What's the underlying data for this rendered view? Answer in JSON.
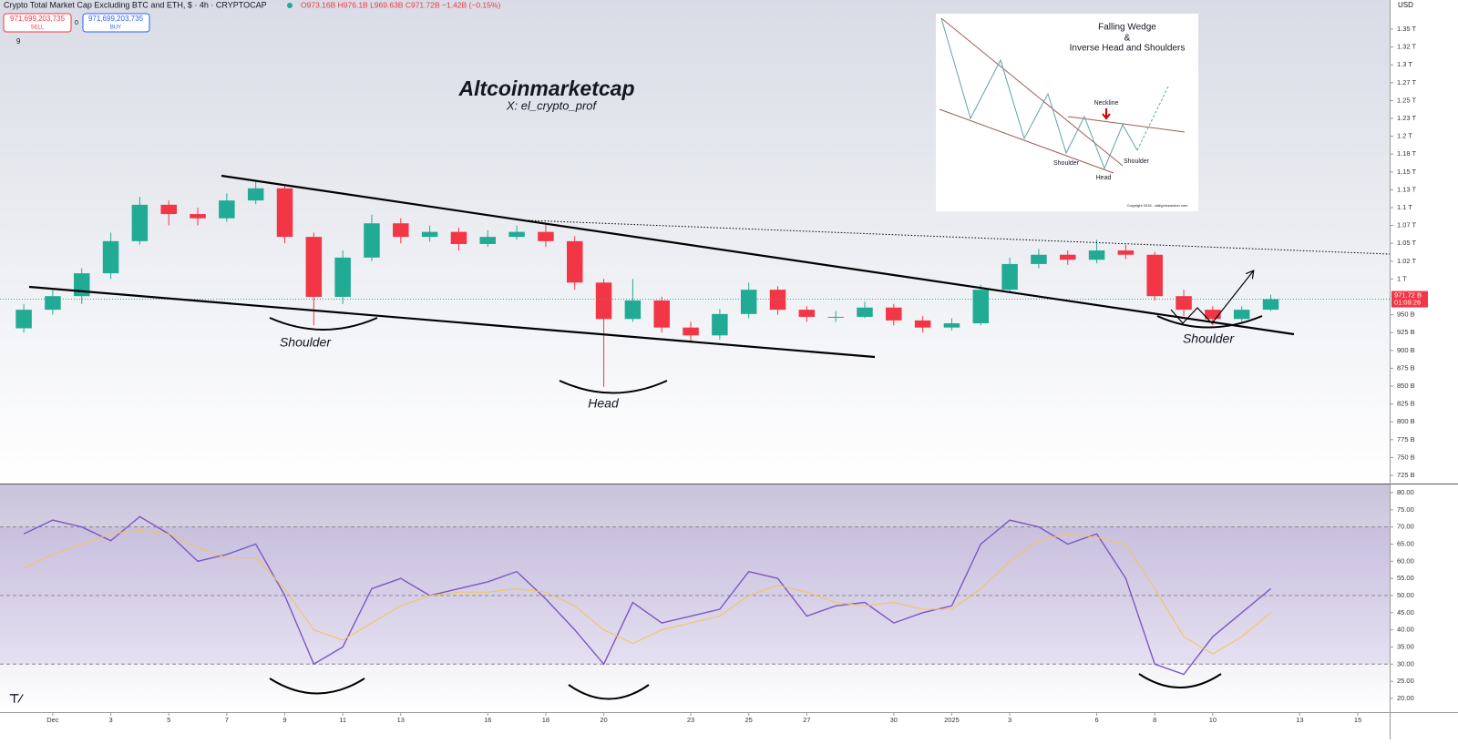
{
  "header": {
    "title": "Crypto Total Market Cap Excluding BTC and ETH, $ · 4h · CRYPTOCAP",
    "ohlc": "O973.16B H976.1B L969.63B C971.72B −1.42B (−0.15%)",
    "sell_price": "971,699,203,735",
    "sell_label": "SELL",
    "spread": "0",
    "buy_price": "971,699,203,735",
    "buy_label": "BUY",
    "indicator_count": "9",
    "currency": "USD"
  },
  "inset": {
    "title_line1": "Falling Wedge",
    "title_line2": "&",
    "title_line3": "Inverse Head and Shoulders",
    "neckline": "Neckline",
    "left_shoulder": "Shoulder",
    "head": "Head",
    "right_shoulder": "Shoulder",
    "copyright": "Copyright 2018 - dailypriceaction.com"
  },
  "chart_data": [
    {
      "type": "candlestick",
      "title": "Altcoinmarketcap",
      "subtitle": "X: el_crypto_prof",
      "annotations": [
        "Shoulder",
        "Head",
        "Shoulder"
      ],
      "x": [
        0,
        1,
        2,
        3,
        4,
        5,
        6,
        7,
        8,
        9,
        10,
        11,
        12,
        13,
        14,
        15,
        16,
        17,
        18,
        19,
        20,
        21,
        22,
        23,
        24,
        25,
        26,
        27,
        28,
        29,
        30,
        31,
        32,
        33,
        34,
        35,
        36,
        37,
        38,
        39,
        40,
        41,
        42,
        43
      ],
      "open": [
        931,
        957,
        976,
        1008,
        1053,
        1104,
        1091,
        1085,
        1110,
        1127,
        1059,
        975,
        1030,
        1078,
        1059,
        1066,
        1049,
        1059,
        1066,
        1053,
        995,
        944,
        970,
        932,
        921,
        951,
        985,
        957,
        947,
        947,
        960,
        942,
        932,
        938,
        985,
        1021,
        1034,
        1027,
        1040,
        1034,
        976,
        957,
        944,
        957
      ],
      "high": [
        965,
        985,
        1015,
        1065,
        1115,
        1110,
        1100,
        1120,
        1138,
        1130,
        1065,
        1040,
        1090,
        1085,
        1075,
        1072,
        1068,
        1075,
        1078,
        1060,
        1000,
        1000,
        975,
        940,
        958,
        995,
        990,
        962,
        955,
        968,
        965,
        948,
        945,
        992,
        1030,
        1042,
        1040,
        1055,
        1048,
        1038,
        985,
        962,
        962,
        978
      ],
      "low": [
        925,
        950,
        965,
        1000,
        1048,
        1075,
        1075,
        1080,
        1105,
        1050,
        935,
        965,
        1025,
        1050,
        1052,
        1040,
        1045,
        1055,
        1045,
        985,
        849,
        940,
        925,
        912,
        915,
        945,
        950,
        940,
        940,
        945,
        935,
        925,
        928,
        935,
        980,
        1015,
        1020,
        1022,
        1028,
        970,
        948,
        935,
        940,
        955
      ],
      "close": [
        957,
        976,
        1008,
        1053,
        1104,
        1091,
        1085,
        1110,
        1127,
        1059,
        975,
        1030,
        1078,
        1059,
        1066,
        1049,
        1059,
        1066,
        1053,
        995,
        944,
        970,
        932,
        921,
        951,
        985,
        957,
        947,
        947,
        960,
        942,
        932,
        938,
        985,
        1021,
        1034,
        1027,
        1040,
        1034,
        976,
        957,
        944,
        957,
        971.72
      ],
      "up_color": "#22ab94",
      "down_color": "#f23645",
      "last_price": 971.72,
      "last_price_label": "971.72 B",
      "countdown": "01:09:26",
      "xlim": [
        -0.82,
        47.1
      ],
      "ylim": [
        713.5,
        1390.8
      ],
      "yticks": [
        {
          "value": 725,
          "label": "725 B"
        },
        {
          "value": 750,
          "label": "750 B"
        },
        {
          "value": 775,
          "label": "775 B"
        },
        {
          "value": 800,
          "label": "800 B"
        },
        {
          "value": 825,
          "label": "825 B"
        },
        {
          "value": 850,
          "label": "850 B"
        },
        {
          "value": 875,
          "label": "875 B"
        },
        {
          "value": 900,
          "label": "900 B"
        },
        {
          "value": 925,
          "label": "925 B"
        },
        {
          "value": 950,
          "label": "950 B"
        },
        {
          "value": 1000,
          "label": "1 T"
        },
        {
          "value": 1025,
          "label": "1.02 T"
        },
        {
          "value": 1050,
          "label": "1.05 T"
        },
        {
          "value": 1075,
          "label": "1.07 T"
        },
        {
          "value": 1100,
          "label": "1.1 T"
        },
        {
          "value": 1125,
          "label": "1.13 T"
        },
        {
          "value": 1150,
          "label": "1.15 T"
        },
        {
          "value": 1175,
          "label": "1.18 T"
        },
        {
          "value": 1200,
          "label": "1.2 T"
        },
        {
          "value": 1225,
          "label": "1.23 T"
        },
        {
          "value": 1250,
          "label": "1.25 T"
        },
        {
          "value": 1275,
          "label": "1.27 T"
        },
        {
          "value": 1300,
          "label": "1.3 T"
        },
        {
          "value": 1325,
          "label": "1.32 T"
        },
        {
          "value": 1350,
          "label": "1.35 T"
        }
      ]
    },
    {
      "type": "line",
      "x": [
        0,
        1,
        2,
        3,
        4,
        5,
        6,
        7,
        8,
        9,
        10,
        11,
        12,
        13,
        14,
        15,
        16,
        17,
        18,
        19,
        20,
        21,
        22,
        23,
        24,
        25,
        26,
        27,
        28,
        29,
        30,
        31,
        32,
        33,
        34,
        35,
        36,
        37,
        38,
        39,
        40,
        41,
        42,
        43
      ],
      "series": [
        {
          "color": "#7e57c2",
          "values": [
            68,
            72,
            70,
            66,
            73,
            68,
            60,
            62,
            65,
            50,
            30,
            35,
            52,
            55,
            50,
            52,
            54,
            57,
            49,
            40,
            30,
            48,
            42,
            44,
            46,
            57,
            55,
            44,
            47,
            48,
            42,
            45,
            47,
            65,
            72,
            70,
            65,
            68,
            55,
            30,
            27,
            38,
            45,
            52
          ]
        },
        {
          "color": "#f5c451",
          "values": [
            58,
            62,
            65,
            68,
            69,
            68,
            64,
            61,
            61,
            52,
            40,
            37,
            42,
            47,
            50,
            51,
            51,
            52,
            51,
            47,
            40,
            36,
            40,
            42,
            44,
            50,
            53,
            51,
            48,
            47,
            48,
            46,
            46,
            52,
            60,
            66,
            68,
            67,
            65,
            52,
            38,
            33,
            38,
            45
          ]
        }
      ],
      "levels": [
        70,
        50,
        30
      ],
      "xlim": [
        -0.82,
        47.1
      ],
      "ylim": [
        16,
        82.4
      ],
      "xticks": [
        {
          "value": 1,
          "label": "Dec"
        },
        3,
        5,
        7,
        9,
        11,
        13,
        16,
        18,
        20,
        23,
        25,
        27,
        30,
        {
          "value": 32,
          "label": "2025"
        },
        {
          "value": 34,
          "label": "3"
        },
        {
          "value": 37,
          "label": "6"
        },
        {
          "value": 39,
          "label": "8"
        },
        {
          "value": 41,
          "label": "10"
        },
        {
          "value": 44,
          "label": "13"
        },
        {
          "value": 46,
          "label": "15"
        }
      ],
      "yticks": [
        {
          "value": 20,
          "label": "20.00"
        },
        {
          "value": 25,
          "label": "25.00"
        },
        {
          "value": 30,
          "label": "30.00"
        },
        {
          "value": 35,
          "label": "35.00"
        },
        {
          "value": 40,
          "label": "40.00"
        },
        {
          "value": 45,
          "label": "45.00"
        },
        {
          "value": 50,
          "label": "50.00"
        },
        {
          "value": 55,
          "label": "55.00"
        },
        {
          "value": 60,
          "label": "60.00"
        },
        {
          "value": 65,
          "label": "65.00"
        },
        {
          "value": 70,
          "label": "70.00"
        },
        {
          "value": 75,
          "label": "75.00"
        },
        {
          "value": 80,
          "label": "80.00"
        }
      ]
    }
  ]
}
